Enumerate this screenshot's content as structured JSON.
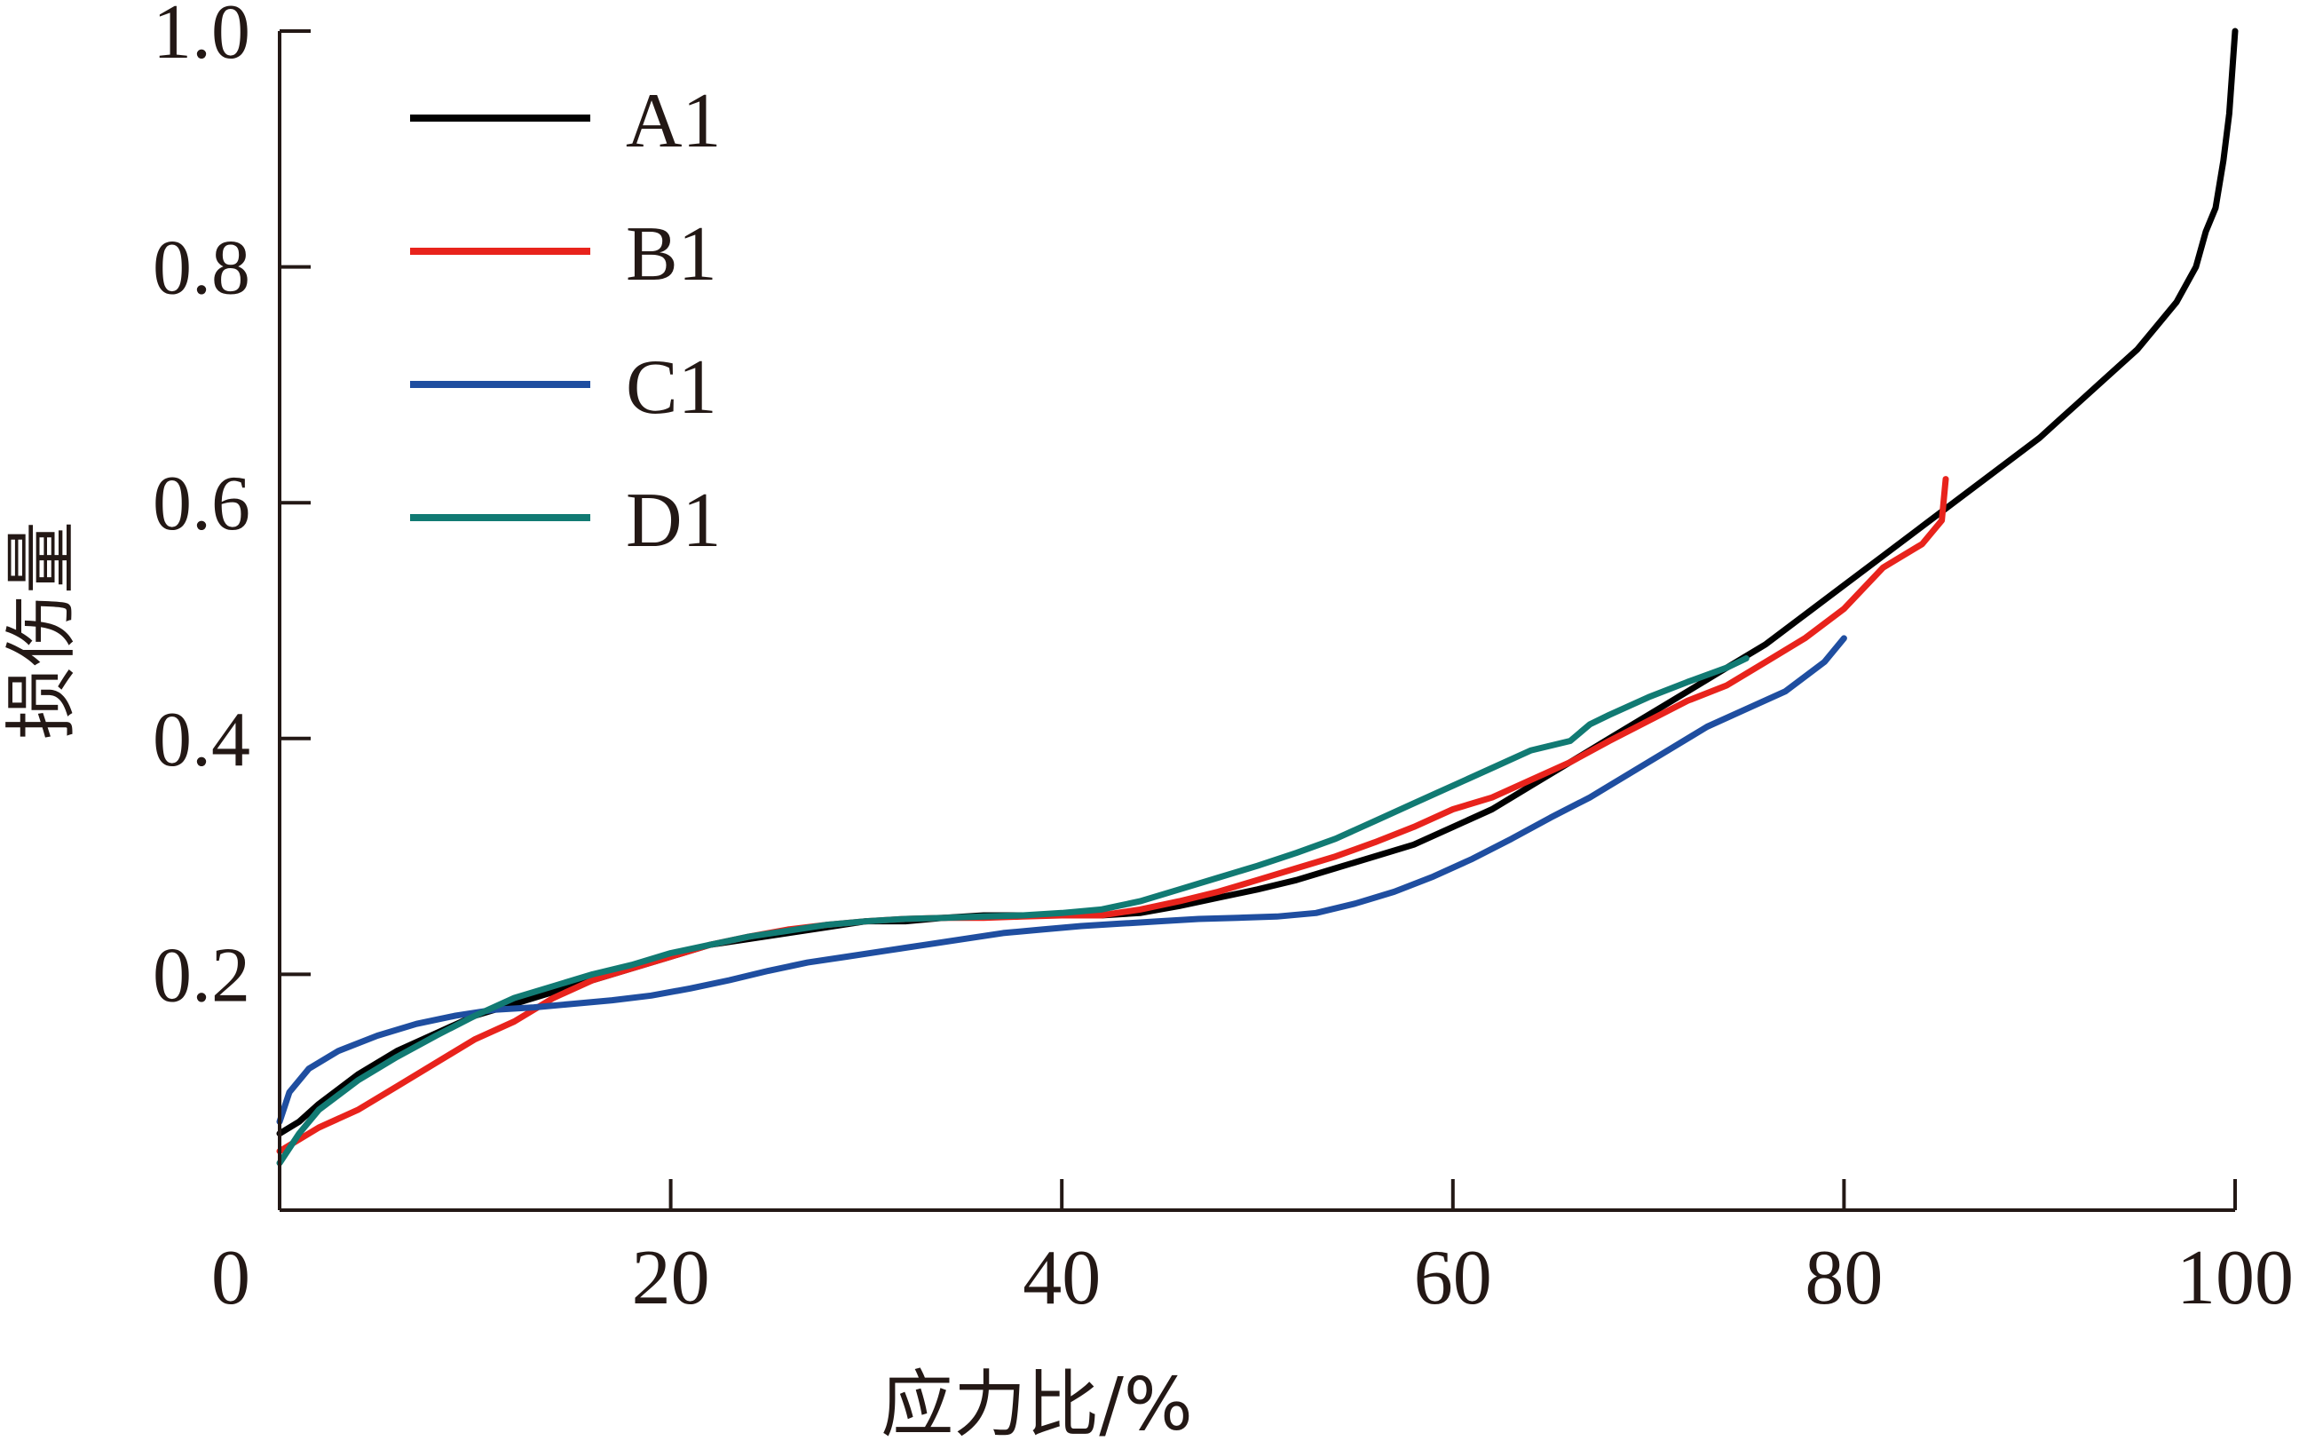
{
  "chart_data": {
    "type": "line",
    "xlabel": "应力比/%",
    "ylabel": "损伤量",
    "xlim": [
      0,
      100
    ],
    "ylim": [
      0,
      1.0
    ],
    "x_ticks": [
      "0",
      "20",
      "40",
      "60",
      "80",
      "100"
    ],
    "y_ticks": [
      "0.2",
      "0.4",
      "0.6",
      "0.8",
      "1.0"
    ],
    "grid": false,
    "legend_position": "top-left",
    "series": [
      {
        "name": "A1",
        "color": "#000000",
        "x": [
          0,
          1,
          2,
          4,
          6,
          8,
          10,
          12,
          14,
          16,
          18,
          20,
          22,
          24,
          26,
          28,
          30,
          32,
          34,
          36,
          38,
          40,
          42,
          44,
          46,
          48,
          50,
          52,
          54,
          56,
          58,
          60,
          62,
          64,
          66,
          68,
          70,
          72,
          74,
          76,
          78,
          80,
          82,
          84,
          86,
          88,
          90,
          91,
          92,
          93,
          94,
          95,
          96,
          97,
          98,
          98.5,
          99,
          99.4,
          99.7,
          100
        ],
        "y": [
          0.065,
          0.075,
          0.09,
          0.115,
          0.135,
          0.15,
          0.165,
          0.175,
          0.185,
          0.195,
          0.205,
          0.215,
          0.225,
          0.23,
          0.235,
          0.24,
          0.245,
          0.245,
          0.248,
          0.25,
          0.25,
          0.25,
          0.25,
          0.252,
          0.258,
          0.265,
          0.272,
          0.28,
          0.29,
          0.3,
          0.31,
          0.325,
          0.34,
          0.36,
          0.38,
          0.4,
          0.42,
          0.44,
          0.46,
          0.48,
          0.505,
          0.53,
          0.555,
          0.58,
          0.605,
          0.63,
          0.655,
          0.67,
          0.685,
          0.7,
          0.715,
          0.73,
          0.75,
          0.77,
          0.8,
          0.83,
          0.85,
          0.89,
          0.93,
          1.0
        ]
      },
      {
        "name": "B1",
        "color": "#e8231c",
        "x": [
          0,
          2,
          4,
          6,
          8,
          10,
          12,
          14,
          16,
          18,
          20,
          22,
          24,
          26,
          28,
          30,
          32,
          34,
          36,
          38,
          40,
          42,
          44,
          46,
          48,
          50,
          52,
          54,
          56,
          58,
          60,
          62,
          64,
          66,
          68,
          70,
          72,
          74,
          76,
          78,
          80,
          82,
          84,
          85,
          85.2
        ],
        "y": [
          0.05,
          0.07,
          0.085,
          0.105,
          0.125,
          0.145,
          0.16,
          0.18,
          0.195,
          0.205,
          0.215,
          0.225,
          0.232,
          0.238,
          0.242,
          0.245,
          0.247,
          0.248,
          0.248,
          0.249,
          0.25,
          0.25,
          0.255,
          0.262,
          0.27,
          0.28,
          0.29,
          0.3,
          0.312,
          0.325,
          0.34,
          0.35,
          0.365,
          0.38,
          0.398,
          0.415,
          0.432,
          0.445,
          0.465,
          0.485,
          0.51,
          0.545,
          0.565,
          0.585,
          0.62
        ]
      },
      {
        "name": "C1",
        "color": "#1f4ea0",
        "x": [
          0,
          0.5,
          1.5,
          3,
          5,
          7,
          9,
          11,
          13,
          15,
          17,
          19,
          21,
          23,
          25,
          27,
          29,
          31,
          33,
          35,
          37,
          39,
          41,
          43,
          45,
          47,
          49,
          51,
          53,
          55,
          57,
          59,
          61,
          63,
          65,
          67,
          69,
          71,
          73,
          75,
          77,
          79,
          80
        ],
        "y": [
          0.075,
          0.1,
          0.12,
          0.135,
          0.148,
          0.158,
          0.165,
          0.17,
          0.172,
          0.175,
          0.178,
          0.182,
          0.188,
          0.195,
          0.203,
          0.21,
          0.215,
          0.22,
          0.225,
          0.23,
          0.235,
          0.238,
          0.241,
          0.243,
          0.245,
          0.247,
          0.248,
          0.249,
          0.252,
          0.26,
          0.27,
          0.283,
          0.298,
          0.315,
          0.333,
          0.35,
          0.37,
          0.39,
          0.41,
          0.425,
          0.44,
          0.465,
          0.485
        ]
      },
      {
        "name": "D1",
        "color": "#117a73",
        "x": [
          0,
          1,
          2,
          4,
          6,
          8,
          10,
          12,
          14,
          16,
          18,
          20,
          22,
          24,
          26,
          28,
          30,
          32,
          34,
          36,
          38,
          40,
          42,
          44,
          46,
          48,
          50,
          52,
          54,
          56,
          58,
          60,
          62,
          64,
          66,
          67,
          68,
          70,
          72,
          74,
          75
        ],
        "y": [
          0.04,
          0.065,
          0.085,
          0.11,
          0.13,
          0.148,
          0.165,
          0.18,
          0.19,
          0.2,
          0.208,
          0.218,
          0.225,
          0.232,
          0.237,
          0.242,
          0.245,
          0.247,
          0.248,
          0.249,
          0.25,
          0.252,
          0.255,
          0.262,
          0.272,
          0.282,
          0.292,
          0.303,
          0.315,
          0.33,
          0.345,
          0.36,
          0.375,
          0.39,
          0.398,
          0.412,
          0.42,
          0.435,
          0.448,
          0.46,
          0.468
        ]
      }
    ]
  }
}
